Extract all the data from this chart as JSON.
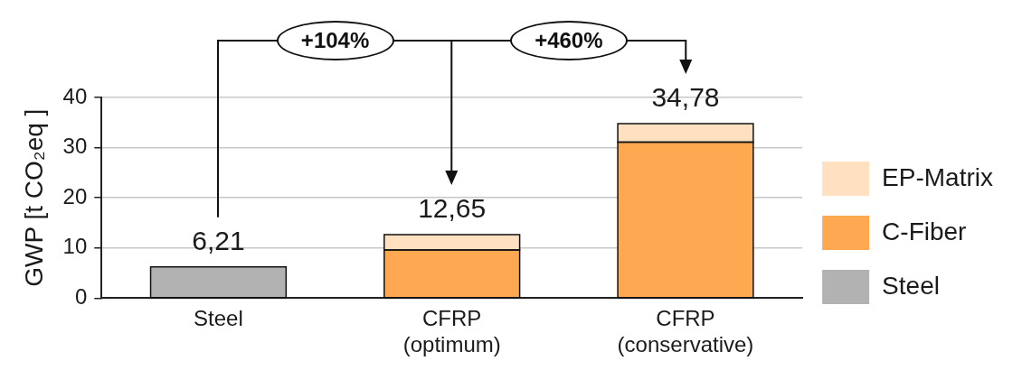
{
  "chart_data": {
    "type": "bar",
    "stacked": true,
    "categories": [
      "Steel",
      "CFRP\n(optimum)",
      "CFRP\n(conservative)"
    ],
    "series": [
      {
        "name": "Steel",
        "color": "#b2b2b2",
        "values": [
          6.21,
          null,
          null
        ]
      },
      {
        "name": "C-Fiber",
        "color": "#ffa852",
        "values": [
          null,
          9.6,
          31.1
        ]
      },
      {
        "name": "EP-Matrix",
        "color": "#ffe0c0",
        "values": [
          null,
          3.05,
          3.68
        ]
      }
    ],
    "ylabel": "GWP [t CO₂eq ]",
    "ylim": [
      0,
      40
    ],
    "yticks": [
      0,
      10,
      20,
      30,
      40
    ],
    "grid": "y",
    "legend": "right",
    "totals": [
      "6,21",
      "12,65",
      "34,78"
    ],
    "annotations": [
      "+104%",
      "+460%"
    ]
  }
}
